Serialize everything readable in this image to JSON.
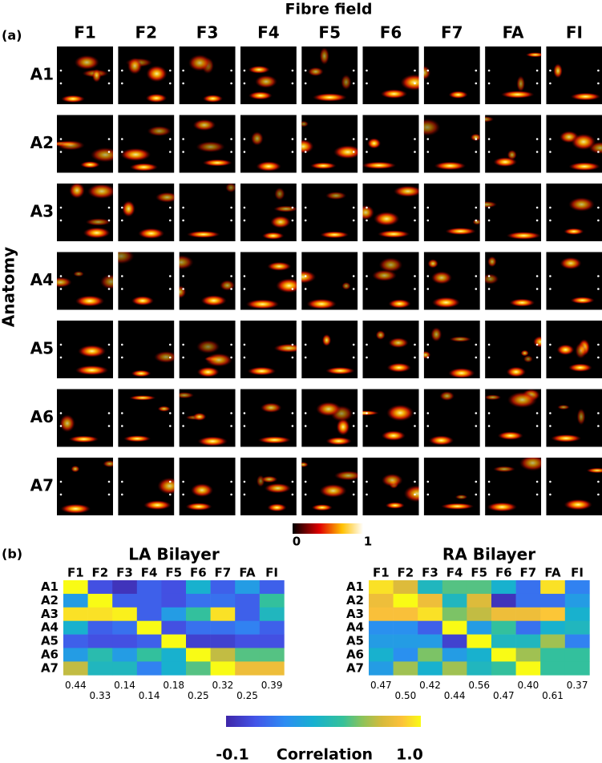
{
  "chart_data": [
    {
      "type": "image_grid",
      "panel_label": "(a)",
      "title": "Fibre field",
      "y_label": "Anatomy",
      "columns": [
        "F1",
        "F2",
        "F3",
        "F4",
        "F5",
        "F6",
        "F7",
        "FA",
        "FI"
      ],
      "rows": [
        "A1",
        "A2",
        "A3",
        "A4",
        "A5",
        "A6",
        "A7"
      ],
      "colorbar": {
        "lim": [
          0,
          1
        ],
        "ticks": [
          0,
          1
        ]
      }
    },
    {
      "type": "heatmap",
      "panel_label": "(b)",
      "title": "LA Bilayer",
      "columns": [
        "F1",
        "F2",
        "F3",
        "F4",
        "F5",
        "F6",
        "F7",
        "FA",
        "FI"
      ],
      "rows": [
        "A1",
        "A2",
        "A3",
        "A4",
        "A5",
        "A6",
        "A7"
      ],
      "values": [
        [
          1.0,
          0.05,
          -0.05,
          0.1,
          0.05,
          0.4,
          0.1,
          0.3,
          0.1
        ],
        [
          0.3,
          1.0,
          0.1,
          0.1,
          0.05,
          0.15,
          0.15,
          0.1,
          0.55
        ],
        [
          0.95,
          0.95,
          0.98,
          0.1,
          0.3,
          0.55,
          0.95,
          0.1,
          0.45
        ],
        [
          0.4,
          0.1,
          0.15,
          1.0,
          0.05,
          0.15,
          0.15,
          0.2,
          0.1
        ],
        [
          0.1,
          0.05,
          0.05,
          0.1,
          1.0,
          0.0,
          0.0,
          0.05,
          0.05
        ],
        [
          0.3,
          0.5,
          0.3,
          0.55,
          0.4,
          1.0,
          0.75,
          0.6,
          0.6
        ],
        [
          0.75,
          0.45,
          0.45,
          0.2,
          0.4,
          0.6,
          1.0,
          0.85,
          0.85
        ]
      ],
      "column_scores": [
        0.44,
        0.33,
        0.14,
        0.14,
        0.18,
        0.25,
        0.32,
        0.25,
        0.39
      ],
      "column_score_labels": [
        "0.44",
        "0.33",
        "0.14",
        "0.14",
        "0.18",
        "0.25",
        "0.32",
        "0.25",
        "0.39"
      ]
    },
    {
      "type": "heatmap",
      "title": "RA Bilayer",
      "columns": [
        "F1",
        "F2",
        "F3",
        "F4",
        "F5",
        "F6",
        "F7",
        "FA",
        "FI"
      ],
      "rows": [
        "A1",
        "A2",
        "A3",
        "A4",
        "A5",
        "A6",
        "A7"
      ],
      "values": [
        [
          0.95,
          0.8,
          0.45,
          0.6,
          0.6,
          0.4,
          0.15,
          0.95,
          0.2
        ],
        [
          0.85,
          1.0,
          0.85,
          0.45,
          0.8,
          -0.05,
          0.15,
          0.15,
          0.3
        ],
        [
          0.88,
          0.88,
          0.95,
          0.65,
          0.75,
          0.85,
          0.85,
          0.9,
          0.4
        ],
        [
          0.25,
          0.25,
          0.1,
          1.0,
          0.3,
          0.55,
          0.15,
          0.4,
          0.45
        ],
        [
          0.3,
          0.3,
          0.3,
          0.0,
          1.0,
          0.45,
          0.45,
          0.7,
          0.2
        ],
        [
          0.4,
          0.25,
          0.65,
          0.3,
          0.4,
          1.0,
          0.7,
          0.55,
          0.55
        ],
        [
          0.3,
          0.7,
          0.4,
          0.7,
          0.45,
          0.55,
          1.0,
          0.55,
          0.55
        ]
      ],
      "column_scores": [
        0.47,
        0.5,
        0.42,
        0.44,
        0.56,
        0.47,
        0.4,
        0.61,
        0.37
      ],
      "column_score_labels": [
        "0.47",
        "0.50",
        "0.42",
        "0.44",
        "0.56",
        "0.47",
        "0.40",
        "0.61",
        "0.37"
      ]
    }
  ],
  "correlation_colorbar": {
    "label": "Correlation",
    "lim": [
      -0.1,
      1
    ],
    "ticks": [
      -0.1,
      {
        "value": 1,
        "label": "1.0"
      }
    ]
  }
}
